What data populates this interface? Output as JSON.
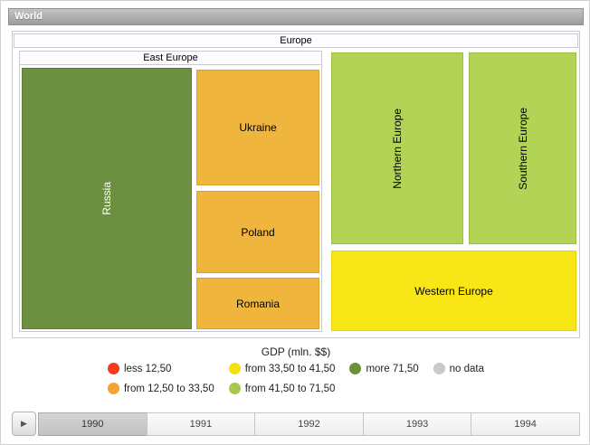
{
  "window": {
    "title": "World"
  },
  "treemap": {
    "root": {
      "label": "Europe"
    },
    "east_europe_group": {
      "label": "East Europe"
    },
    "nodes": {
      "russia": {
        "label": "Russia",
        "color": "#6d9040"
      },
      "ukraine": {
        "label": "Ukraine",
        "color": "#efb53d"
      },
      "poland": {
        "label": "Poland",
        "color": "#efb53d"
      },
      "romania": {
        "label": "Romania",
        "color": "#efb53d"
      },
      "northern": {
        "label": "Northern Europe",
        "color": "#b2d355"
      },
      "southern": {
        "label": "Southern Europe",
        "color": "#b2d355"
      },
      "western": {
        "label": "Western Europe",
        "color": "#f8e616"
      }
    }
  },
  "legend": {
    "title": "GDP (mln. $$)",
    "items": [
      {
        "label": "less 12,50",
        "color": "#f23c1e"
      },
      {
        "label": "from 12,50 to 33,50",
        "color": "#f2a333"
      },
      {
        "label": "from 33,50 to 41,50",
        "color": "#f4e20f"
      },
      {
        "label": "from 41,50 to 71,50",
        "color": "#a9c94c"
      },
      {
        "label": "more 71,50",
        "color": "#6d8f3a"
      },
      {
        "label": "no data",
        "color": "#c9c9c9"
      }
    ]
  },
  "timeline": {
    "play_icon": "▶",
    "years": [
      {
        "label": "1990",
        "selected": true
      },
      {
        "label": "1991",
        "selected": false
      },
      {
        "label": "1992",
        "selected": false
      },
      {
        "label": "1993",
        "selected": false
      },
      {
        "label": "1994",
        "selected": false
      }
    ]
  },
  "chart_data": {
    "type": "treemap",
    "title": "GDP (mln. $$)",
    "root": "World",
    "period_shown": "1990",
    "tree": {
      "label": "Europe",
      "children": [
        {
          "label": "East Europe",
          "children": [
            {
              "label": "Russia",
              "gdp_range": "more 71,50",
              "size_share_approx": 0.32
            },
            {
              "label": "Ukraine",
              "gdp_range": "from 12,50 to 33,50",
              "size_share_approx": 0.1
            },
            {
              "label": "Poland",
              "gdp_range": "from 12,50 to 33,50",
              "size_share_approx": 0.07
            },
            {
              "label": "Romania",
              "gdp_range": "from 12,50 to 33,50",
              "size_share_approx": 0.05
            }
          ]
        },
        {
          "label": "Northern Europe",
          "gdp_range": "from 41,50 to 71,50",
          "size_share_approx": 0.18
        },
        {
          "label": "Southern Europe",
          "gdp_range": "from 41,50 to 71,50",
          "size_share_approx": 0.15
        },
        {
          "label": "Western Europe",
          "gdp_range": "from 33,50 to 41,50",
          "size_share_approx": 0.14
        }
      ]
    },
    "legend_entries": [
      "less 12,50",
      "from 12,50 to 33,50",
      "from 33,50 to 41,50",
      "from 41,50 to 71,50",
      "more 71,50",
      "no data"
    ],
    "timeline_years": [
      "1990",
      "1991",
      "1992",
      "1993",
      "1994"
    ],
    "legend_position": "bottom",
    "grid": false
  }
}
